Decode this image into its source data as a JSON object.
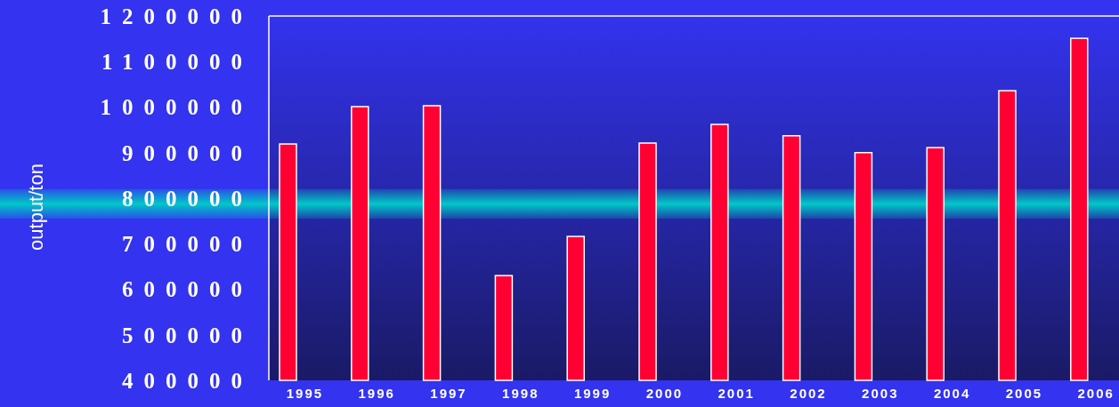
{
  "chart_data": {
    "type": "bar",
    "ylabel": "output/ton",
    "categories": [
      "1995",
      "1996",
      "1997",
      "1998",
      "1999",
      "2000",
      "2001",
      "2002",
      "2003",
      "2004",
      "2005",
      "2006"
    ],
    "values": [
      919000,
      1001000,
      1003000,
      630000,
      716000,
      921000,
      962000,
      937000,
      900000,
      911000,
      1036000,
      1151000
    ],
    "color": "#ff0033",
    "ylim": [
      400000,
      1200000
    ],
    "yticks": [
      400000,
      500000,
      600000,
      700000,
      800000,
      900000,
      1000000,
      1100000,
      1200000
    ],
    "bands": [
      {
        "axis": "y",
        "from": 755000,
        "to": 820000,
        "color": "#00c8c8"
      }
    ],
    "grid": false
  }
}
